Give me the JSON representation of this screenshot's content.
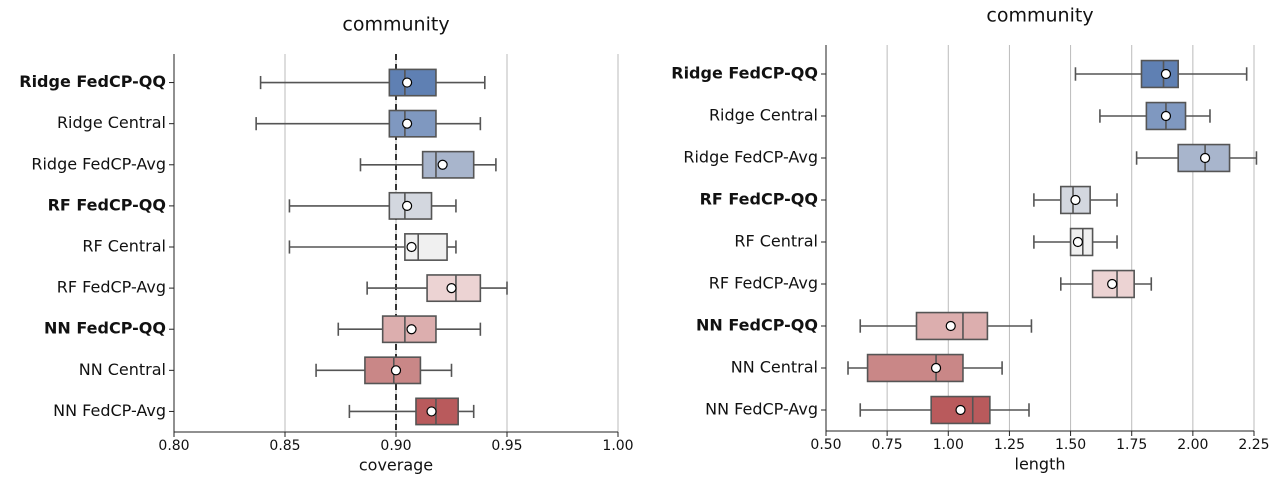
{
  "chart_data": [
    {
      "type": "box",
      "title": "community",
      "xlabel": "coverage",
      "categories": [
        "Ridge FedCP-QQ",
        "Ridge Central",
        "Ridge FedCP-Avg",
        "RF FedCP-QQ",
        "RF Central",
        "RF FedCP-Avg",
        "NN FedCP-QQ",
        "NN Central",
        "NN FedCP-Avg"
      ],
      "bold": [
        true,
        false,
        false,
        true,
        false,
        false,
        true,
        false,
        false
      ],
      "colors": [
        "#5f80b3",
        "#7f98c0",
        "#a8b5cc",
        "#d3d7df",
        "#f0f0f0",
        "#ecd3d3",
        "#dcaeae",
        "#c98787",
        "#b95a5c"
      ],
      "boxes": [
        {
          "whislo": 0.839,
          "q1": 0.897,
          "med": 0.904,
          "q3": 0.918,
          "whishi": 0.94,
          "mean": 0.905
        },
        {
          "whislo": 0.837,
          "q1": 0.897,
          "med": 0.904,
          "q3": 0.918,
          "whishi": 0.938,
          "mean": 0.905
        },
        {
          "whislo": 0.884,
          "q1": 0.912,
          "med": 0.918,
          "q3": 0.935,
          "whishi": 0.945,
          "mean": 0.921
        },
        {
          "whislo": 0.852,
          "q1": 0.897,
          "med": 0.904,
          "q3": 0.916,
          "whishi": 0.927,
          "mean": 0.905
        },
        {
          "whislo": 0.852,
          "q1": 0.904,
          "med": 0.91,
          "q3": 0.923,
          "whishi": 0.927,
          "mean": 0.907
        },
        {
          "whislo": 0.887,
          "q1": 0.914,
          "med": 0.927,
          "q3": 0.938,
          "whishi": 0.95,
          "mean": 0.925
        },
        {
          "whislo": 0.874,
          "q1": 0.894,
          "med": 0.904,
          "q3": 0.918,
          "whishi": 0.938,
          "mean": 0.907
        },
        {
          "whislo": 0.864,
          "q1": 0.886,
          "med": 0.899,
          "q3": 0.911,
          "whishi": 0.925,
          "mean": 0.9
        },
        {
          "whislo": 0.879,
          "q1": 0.909,
          "med": 0.918,
          "q3": 0.928,
          "whishi": 0.935,
          "mean": 0.916
        }
      ],
      "xlim": [
        0.8,
        1.0
      ],
      "xticks": [
        {
          "value": 0.8,
          "label": "0.80"
        },
        0.85,
        {
          "value": 0.9,
          "label": "0.90"
        },
        0.95,
        {
          "value": 1.0,
          "label": "1.00"
        }
      ],
      "grid": true,
      "reference_line": 0.9
    },
    {
      "type": "box",
      "title": "community",
      "xlabel": "length",
      "categories": [
        "Ridge FedCP-QQ",
        "Ridge Central",
        "Ridge FedCP-Avg",
        "RF FedCP-QQ",
        "RF Central",
        "RF FedCP-Avg",
        "NN FedCP-QQ",
        "NN Central",
        "NN FedCP-Avg"
      ],
      "bold": [
        true,
        false,
        false,
        true,
        false,
        false,
        true,
        false,
        false
      ],
      "colors": [
        "#5f80b3",
        "#7f98c0",
        "#a8b5cc",
        "#d3d7df",
        "#f0f0f0",
        "#ecd3d3",
        "#dcaeae",
        "#c98787",
        "#b95a5c"
      ],
      "boxes": [
        {
          "whislo": 1.52,
          "q1": 1.79,
          "med": 1.88,
          "q3": 1.94,
          "whishi": 2.22,
          "mean": 1.89
        },
        {
          "whislo": 1.62,
          "q1": 1.81,
          "med": 1.89,
          "q3": 1.97,
          "whishi": 2.07,
          "mean": 1.89
        },
        {
          "whislo": 1.77,
          "q1": 1.94,
          "med": 2.05,
          "q3": 2.15,
          "whishi": 2.26,
          "mean": 2.05
        },
        {
          "whislo": 1.35,
          "q1": 1.46,
          "med": 1.51,
          "q3": 1.58,
          "whishi": 1.69,
          "mean": 1.52
        },
        {
          "whislo": 1.35,
          "q1": 1.5,
          "med": 1.55,
          "q3": 1.59,
          "whishi": 1.69,
          "mean": 1.53
        },
        {
          "whislo": 1.46,
          "q1": 1.59,
          "med": 1.69,
          "q3": 1.76,
          "whishi": 1.83,
          "mean": 1.67
        },
        {
          "whislo": 0.64,
          "q1": 0.87,
          "med": 1.06,
          "q3": 1.16,
          "whishi": 1.34,
          "mean": 1.01
        },
        {
          "whislo": 0.59,
          "q1": 0.67,
          "med": 0.95,
          "q3": 1.06,
          "whishi": 1.22,
          "mean": 0.95
        },
        {
          "whislo": 0.64,
          "q1": 0.93,
          "med": 1.1,
          "q3": 1.17,
          "whishi": 1.33,
          "mean": 1.05
        }
      ],
      "xlim": [
        0.5,
        2.25
      ],
      "xticks": [
        {
          "value": 0.5,
          "label": "0.50"
        },
        0.75,
        {
          "value": 1.0,
          "label": "1.00"
        },
        1.25,
        {
          "value": 1.5,
          "label": "1.50"
        },
        1.75,
        {
          "value": 2.0,
          "label": "2.00"
        },
        2.25
      ],
      "grid": true
    }
  ]
}
